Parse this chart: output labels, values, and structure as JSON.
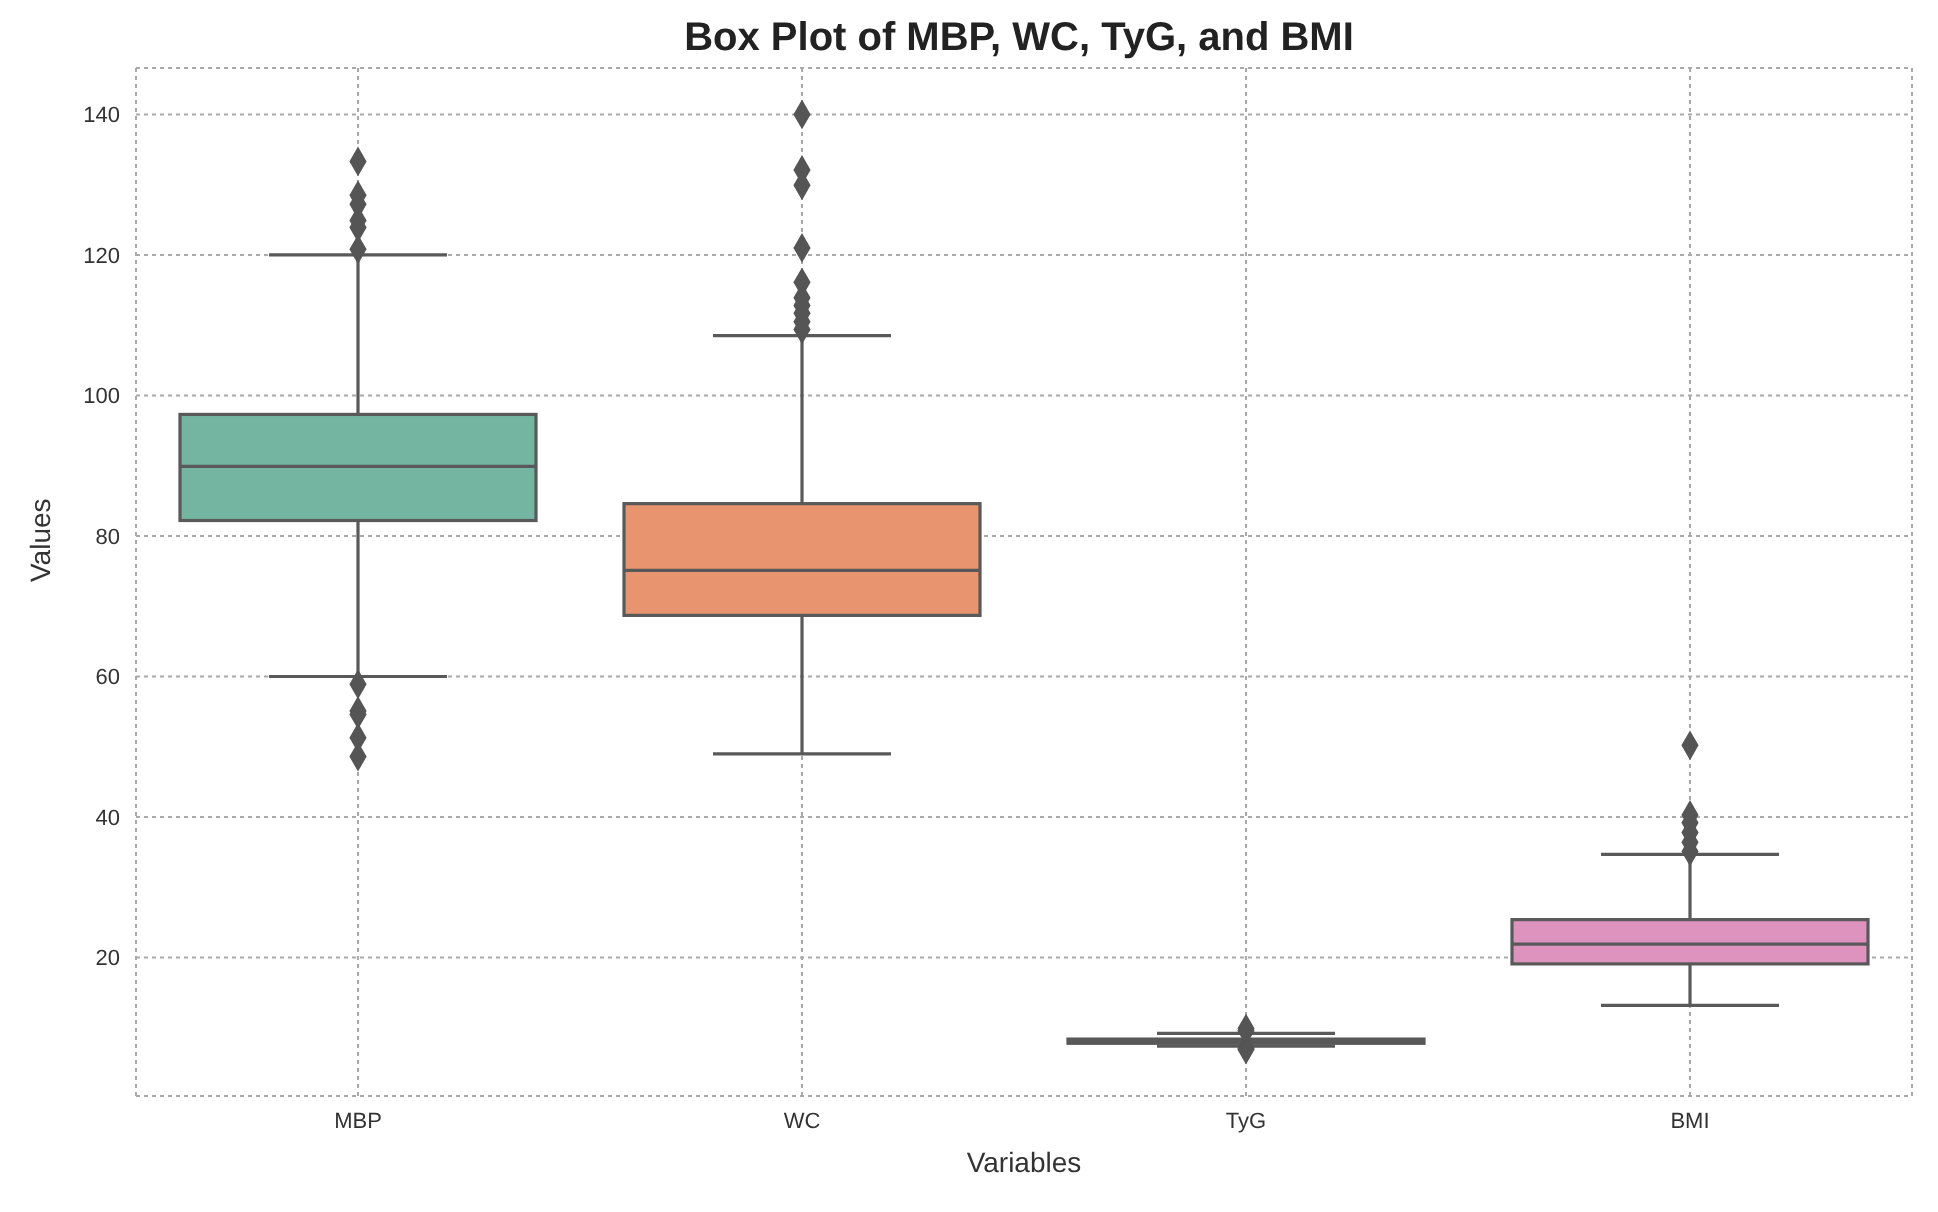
{
  "chart_data": {
    "type": "box",
    "title": "Box Plot of MBP, WC, TyG, and BMI",
    "xlabel": "Variables",
    "ylabel": "Values",
    "categories": [
      "MBP",
      "WC",
      "TyG",
      "BMI"
    ],
    "colors": [
      "#73b5a0",
      "#e8956f",
      "#8a9ac4",
      "#dd93bd"
    ],
    "boxes": [
      {
        "low": 60,
        "q1": 82.2,
        "median": 89.9,
        "q3": 97.3,
        "high": 120,
        "outliers": [
          133.3,
          128.5,
          127.2,
          124.9,
          123.9,
          120.8,
          58.9,
          55.1,
          54.6,
          51.3,
          48.6
        ]
      },
      {
        "low": 49,
        "q1": 68.7,
        "median": 75.1,
        "q3": 84.6,
        "high": 108.5,
        "outliers": [
          140,
          132.1,
          129.9,
          121,
          116.1,
          113.9,
          112.8,
          111.7,
          110.5,
          109.4
        ]
      },
      {
        "low": 7.4,
        "q1": 7.8,
        "median": 8.1,
        "q3": 8.4,
        "high": 9.2,
        "outliers": [
          9.9,
          9.6,
          7.1,
          6.9
        ]
      },
      {
        "low": 13.2,
        "q1": 19.1,
        "median": 21.9,
        "q3": 25.4,
        "high": 34.7,
        "outliers": [
          50.2,
          40.3,
          39.2,
          37.8,
          36.4,
          35.1
        ]
      }
    ],
    "ylim": [
      0.3,
      146.6
    ],
    "yticks": [
      20,
      40,
      60,
      80,
      100,
      120,
      140
    ],
    "grid": true,
    "marker": "diamond"
  }
}
